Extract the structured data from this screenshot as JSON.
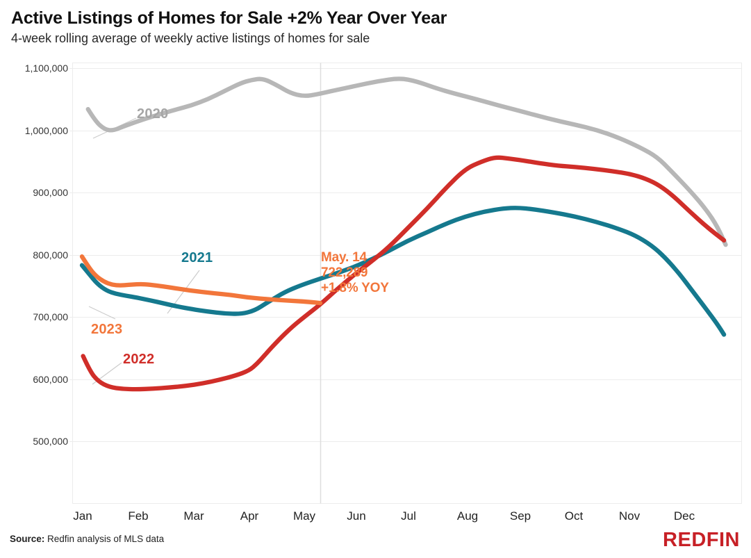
{
  "header": {
    "title": "Active Listings of Homes for Sale +2% Year Over Year",
    "subtitle": "4-week rolling average of weekly active listings of homes for sale"
  },
  "footer": {
    "source_label": "Source:",
    "source_text": " Redfin analysis of MLS data",
    "logo_text": "REDFIN"
  },
  "colors": {
    "series_2020": "#B7B7B7",
    "series_2021": "#15798E",
    "series_2022": "#D02E29",
    "series_2023": "#F2763B",
    "label_2020": "#A6A6A6",
    "grid": "#ECECEC",
    "reference_line": "#DEDEDE",
    "logo_red": "#C72026"
  },
  "chart_data": {
    "type": "line",
    "title": "Active Listings of Homes for Sale +2% Year Over Year",
    "subtitle": "4-week rolling average of weekly active listings of homes for sale",
    "xlabel": "",
    "ylabel": "",
    "grid": true,
    "legend_position": "labels-on-lines",
    "categories": [
      "Jan",
      "Feb",
      "Mar",
      "Apr",
      "May",
      "Jun",
      "Jul",
      "Aug",
      "Sep",
      "Oct",
      "Nov",
      "Dec"
    ],
    "ytick_labels": [
      "1,100,000",
      "1,000,000",
      "900,000",
      "800,000",
      "700,000",
      "600,000",
      "500,000"
    ],
    "y_ticks": [
      1100000,
      1000000,
      900000,
      800000,
      700000,
      600000,
      500000
    ],
    "ylim": [
      500000,
      1100000
    ],
    "annotation": {
      "lines": [
        "May. 14",
        "722,289",
        "+1.8% YOY"
      ],
      "date": "May. 14",
      "value": 722289,
      "yoy": "+1.8% YOY"
    },
    "series": [
      {
        "name": "2020",
        "color": "#B7B7B7",
        "points": [
          [
            0.11,
            1034000
          ],
          [
            0.25,
            1014000
          ],
          [
            0.42,
            1001000
          ],
          [
            0.57,
            999500
          ],
          [
            0.75,
            1006000
          ],
          [
            1.0,
            1014000
          ],
          [
            1.35,
            1024000
          ],
          [
            1.7,
            1033000
          ],
          [
            2.0,
            1040000
          ],
          [
            2.3,
            1050000
          ],
          [
            2.6,
            1063000
          ],
          [
            2.9,
            1076000
          ],
          [
            3.1,
            1081000
          ],
          [
            3.3,
            1083500
          ],
          [
            3.55,
            1073000
          ],
          [
            3.8,
            1060000
          ],
          [
            4.05,
            1054500
          ],
          [
            4.3,
            1058000
          ],
          [
            4.6,
            1064000
          ],
          [
            5.0,
            1071500
          ],
          [
            5.4,
            1079000
          ],
          [
            5.8,
            1084000
          ],
          [
            6.1,
            1079000
          ],
          [
            6.45,
            1068000
          ],
          [
            6.8,
            1059000
          ],
          [
            7.2,
            1050000
          ],
          [
            7.6,
            1040000
          ],
          [
            8.0,
            1031000
          ],
          [
            8.5,
            1019000
          ],
          [
            9.0,
            1009000
          ],
          [
            9.4,
            1000500
          ],
          [
            9.8,
            988000
          ],
          [
            10.2,
            972000
          ],
          [
            10.5,
            957000
          ],
          [
            10.75,
            935000
          ],
          [
            11.1,
            903000
          ],
          [
            11.4,
            872000
          ],
          [
            11.6,
            845000
          ],
          [
            11.75,
            816000
          ]
        ]
      },
      {
        "name": "2021",
        "color": "#15798E",
        "points": [
          [
            0,
            783000
          ],
          [
            0.12,
            770000
          ],
          [
            0.28,
            753000
          ],
          [
            0.45,
            742000
          ],
          [
            0.62,
            737000
          ],
          [
            0.8,
            734000
          ],
          [
            1.0,
            731000
          ],
          [
            1.25,
            726500
          ],
          [
            1.5,
            721500
          ],
          [
            1.75,
            716500
          ],
          [
            2.0,
            712500
          ],
          [
            2.3,
            708500
          ],
          [
            2.6,
            705500
          ],
          [
            2.9,
            704500
          ],
          [
            3.15,
            710000
          ],
          [
            3.4,
            724000
          ],
          [
            3.7,
            740000
          ],
          [
            4.0,
            751000
          ],
          [
            4.35,
            761500
          ],
          [
            4.7,
            771500
          ],
          [
            5.0,
            781500
          ],
          [
            5.3,
            793000
          ],
          [
            5.6,
            806000
          ],
          [
            5.95,
            822500
          ],
          [
            6.3,
            836000
          ],
          [
            6.65,
            850000
          ],
          [
            7.0,
            861500
          ],
          [
            7.35,
            869500
          ],
          [
            7.7,
            874500
          ],
          [
            7.95,
            875500
          ],
          [
            8.25,
            873000
          ],
          [
            8.6,
            868000
          ],
          [
            9.0,
            861500
          ],
          [
            9.4,
            852500
          ],
          [
            9.8,
            841500
          ],
          [
            10.1,
            831000
          ],
          [
            10.4,
            815000
          ],
          [
            10.65,
            795000
          ],
          [
            10.9,
            770000
          ],
          [
            11.15,
            741000
          ],
          [
            11.4,
            712000
          ],
          [
            11.6,
            688000
          ],
          [
            11.72,
            671500
          ]
        ]
      },
      {
        "name": "2022",
        "color": "#D02E29",
        "points": [
          [
            0.02,
            637000
          ],
          [
            0.15,
            612000
          ],
          [
            0.3,
            596000
          ],
          [
            0.5,
            587000
          ],
          [
            0.75,
            584000
          ],
          [
            1.0,
            583500
          ],
          [
            1.3,
            584500
          ],
          [
            1.6,
            586500
          ],
          [
            1.9,
            589000
          ],
          [
            2.2,
            593000
          ],
          [
            2.5,
            598500
          ],
          [
            2.8,
            605500
          ],
          [
            3.05,
            613500
          ],
          [
            3.2,
            625000
          ],
          [
            3.32,
            637000
          ],
          [
            3.6,
            664000
          ],
          [
            3.85,
            685000
          ],
          [
            4.06,
            700000
          ],
          [
            4.35,
            720000
          ],
          [
            4.65,
            744000
          ],
          [
            5.0,
            770000
          ],
          [
            5.3,
            790000
          ],
          [
            5.6,
            812000
          ],
          [
            5.95,
            843000
          ],
          [
            6.3,
            874000
          ],
          [
            6.65,
            908000
          ],
          [
            7.0,
            938000
          ],
          [
            7.3,
            950000
          ],
          [
            7.55,
            957000
          ],
          [
            7.8,
            954500
          ],
          [
            8.05,
            951500
          ],
          [
            8.35,
            947000
          ],
          [
            8.7,
            943000
          ],
          [
            9.0,
            941000
          ],
          [
            9.35,
            938000
          ],
          [
            9.7,
            934000
          ],
          [
            10.0,
            930000
          ],
          [
            10.3,
            922000
          ],
          [
            10.55,
            911000
          ],
          [
            10.8,
            894000
          ],
          [
            11.1,
            869000
          ],
          [
            11.4,
            845000
          ],
          [
            11.72,
            823000
          ]
        ]
      },
      {
        "name": "2023",
        "color": "#F2763B",
        "points": [
          [
            0,
            797000
          ],
          [
            0.12,
            780000
          ],
          [
            0.25,
            766000
          ],
          [
            0.4,
            756500
          ],
          [
            0.55,
            751500
          ],
          [
            0.7,
            750500
          ],
          [
            0.85,
            751500
          ],
          [
            1.0,
            752500
          ],
          [
            1.15,
            752500
          ],
          [
            1.35,
            750500
          ],
          [
            1.6,
            747500
          ],
          [
            1.85,
            744000
          ],
          [
            2.1,
            741000
          ],
          [
            2.4,
            738000
          ],
          [
            2.7,
            735500
          ],
          [
            3.0,
            731500
          ],
          [
            3.3,
            729000
          ],
          [
            3.6,
            727000
          ],
          [
            3.9,
            725500
          ],
          [
            4.15,
            724000
          ],
          [
            4.35,
            722289
          ]
        ]
      }
    ]
  }
}
